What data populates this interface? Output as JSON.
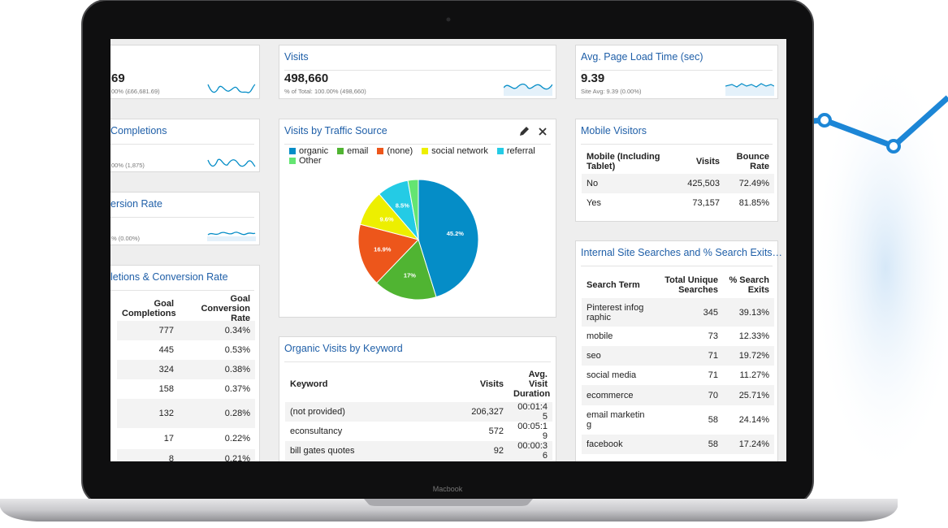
{
  "device_label": "Macbook",
  "left_widgets": [
    {
      "value": "69",
      "subtitle": "00% (£66,681.69)"
    },
    {
      "title": "Completions",
      "subtitle": "00% (1,875)"
    },
    {
      "title": "ersion Rate",
      "subtitle": "% (0.00%)"
    }
  ],
  "goal_table": {
    "title": "letions & Conversion Rate",
    "columns": [
      "Goal Completions",
      "Goal Conversion Rate"
    ],
    "rows": [
      [
        "777",
        "0.34%"
      ],
      [
        "445",
        "0.53%"
      ],
      [
        "324",
        "0.38%"
      ],
      [
        "158",
        "0.37%"
      ],
      [
        "132",
        "0.28%"
      ],
      [
        "17",
        "0.22%"
      ],
      [
        "8",
        "0.21%"
      ]
    ]
  },
  "visits": {
    "title": "Visits",
    "value": "498,660",
    "subtitle": "% of Total: 100.00% (498,660)"
  },
  "load_time": {
    "title": "Avg. Page Load Time (sec)",
    "value": "9.39",
    "subtitle": "Site Avg: 9.39 (0.00%)"
  },
  "chart_data": {
    "type": "pie",
    "title": "Visits by Traffic Source",
    "categories": [
      "organic",
      "email",
      "(none)",
      "social network",
      "referral",
      "Other"
    ],
    "values": [
      45.2,
      17,
      16.9,
      9.6,
      8.5,
      2.8
    ],
    "value_labels": [
      "45.2%",
      "17%",
      "16.9%",
      "9.6%",
      "8.5%",
      null
    ],
    "colors": [
      "#058dc7",
      "#50b432",
      "#ed561b",
      "#edef00",
      "#24cbe5",
      "#64e572"
    ]
  },
  "mobile_table": {
    "title": "Mobile Visitors",
    "columns": [
      "Mobile (Including Tablet)",
      "Visits",
      "Bounce Rate"
    ],
    "rows": [
      [
        "No",
        "425,503",
        "72.49%"
      ],
      [
        "Yes",
        "73,157",
        "81.85%"
      ]
    ]
  },
  "keyword_table": {
    "title": "Organic Visits by Keyword",
    "columns": [
      "Keyword",
      "Visits",
      "Avg. Visit Duration"
    ],
    "rows": [
      [
        "(not provided)",
        "206,327",
        "00:01:45"
      ],
      [
        "econsultancy",
        "572",
        "00:05:19"
      ],
      [
        "bill gates quotes",
        "92",
        "00:00:36"
      ]
    ]
  },
  "search_table": {
    "title": "Internal Site Searches and % Search Exits…",
    "columns": [
      "Search Term",
      "Total Unique Searches",
      "% Search Exits"
    ],
    "rows": [
      [
        "Pinterest infographic",
        "345",
        "39.13%"
      ],
      [
        "mobile",
        "73",
        "12.33%"
      ],
      [
        "seo",
        "71",
        "19.72%"
      ],
      [
        "social media",
        "71",
        "11.27%"
      ],
      [
        "ecommerce",
        "70",
        "25.71%"
      ],
      [
        "email marketing",
        "58",
        "24.14%"
      ],
      [
        "facebook",
        "58",
        "17.24%"
      ]
    ]
  }
}
